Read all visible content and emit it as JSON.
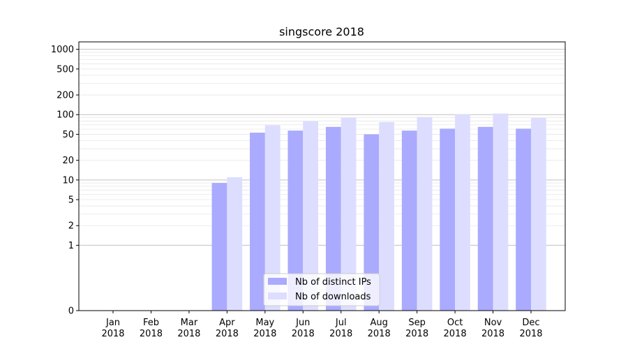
{
  "chart_data": {
    "type": "bar",
    "title": "singscore 2018",
    "xlabel": "",
    "ylabel": "",
    "yscale": "symlog",
    "ylim": [
      0,
      1300
    ],
    "yticks": [
      0,
      1,
      2,
      5,
      10,
      20,
      50,
      100,
      200,
      500,
      1000
    ],
    "ytick_labels": [
      "0",
      "1",
      "2",
      "5",
      "10",
      "20",
      "50",
      "100",
      "200",
      "500",
      "1000"
    ],
    "grid": true,
    "legend_position": "lower-center",
    "categories": [
      {
        "month": "Jan",
        "year": "2018"
      },
      {
        "month": "Feb",
        "year": "2018"
      },
      {
        "month": "Mar",
        "year": "2018"
      },
      {
        "month": "Apr",
        "year": "2018"
      },
      {
        "month": "May",
        "year": "2018"
      },
      {
        "month": "Jun",
        "year": "2018"
      },
      {
        "month": "Jul",
        "year": "2018"
      },
      {
        "month": "Aug",
        "year": "2018"
      },
      {
        "month": "Sep",
        "year": "2018"
      },
      {
        "month": "Oct",
        "year": "2018"
      },
      {
        "month": "Nov",
        "year": "2018"
      },
      {
        "month": "Dec",
        "year": "2018"
      }
    ],
    "series": [
      {
        "name": "Nb of distinct IPs",
        "color": "#aaaaff",
        "values": [
          0,
          0,
          0,
          9,
          53,
          57,
          65,
          50,
          57,
          61,
          65,
          61
        ]
      },
      {
        "name": "Nb of downloads",
        "color": "#ddddff",
        "values": [
          0,
          0,
          0,
          11,
          69,
          79,
          90,
          77,
          92,
          101,
          104,
          89
        ]
      }
    ]
  }
}
